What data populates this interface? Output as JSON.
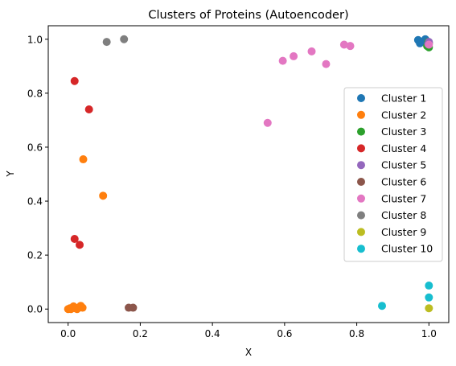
{
  "chart_data": {
    "type": "scatter",
    "title": "Clusters of Proteins (Autoencoder)",
    "xlabel": "X",
    "ylabel": "Y",
    "xlim": [
      -0.055,
      1.055
    ],
    "ylim": [
      -0.05,
      1.05
    ],
    "xticks": [
      0.0,
      0.2,
      0.4,
      0.6,
      0.8,
      1.0
    ],
    "xtick_labels": [
      "0.0",
      "0.2",
      "0.4",
      "0.6",
      "0.8",
      "1.0"
    ],
    "yticks": [
      0.0,
      0.2,
      0.4,
      0.6,
      0.8,
      1.0
    ],
    "ytick_labels": [
      "0.0",
      "0.2",
      "0.4",
      "0.6",
      "0.8",
      "1.0"
    ],
    "grid": false,
    "legend_position": "center-right",
    "series": [
      {
        "name": "Cluster 1",
        "color": "#1f77b4",
        "points": [
          [
            0.97,
            0.997
          ],
          [
            0.975,
            0.985
          ],
          [
            0.98,
            0.99
          ],
          [
            0.99,
            1.0
          ],
          [
            0.995,
            0.993
          ]
        ]
      },
      {
        "name": "Cluster 2",
        "color": "#ff7f0e",
        "points": [
          [
            0.0,
            0.0
          ],
          [
            0.005,
            0.003
          ],
          [
            0.008,
            0.0
          ],
          [
            0.012,
            0.005
          ],
          [
            0.015,
            0.01
          ],
          [
            0.02,
            0.003
          ],
          [
            0.025,
            0.0
          ],
          [
            0.03,
            0.006
          ],
          [
            0.035,
            0.012
          ],
          [
            0.04,
            0.005
          ],
          [
            0.042,
            0.555
          ],
          [
            0.097,
            0.42
          ]
        ]
      },
      {
        "name": "Cluster 3",
        "color": "#2ca02c",
        "points": [
          [
            0.995,
            0.975
          ],
          [
            1.0,
            0.97
          ],
          [
            1.0,
            0.985
          ],
          [
            0.998,
            0.99
          ]
        ]
      },
      {
        "name": "Cluster 4",
        "color": "#d62728",
        "points": [
          [
            0.018,
            0.845
          ],
          [
            0.058,
            0.74
          ],
          [
            0.018,
            0.26
          ],
          [
            0.032,
            0.238
          ]
        ]
      },
      {
        "name": "Cluster 5",
        "color": "#9467bd",
        "points": [
          [
            1.0,
            0.99
          ],
          [
            0.998,
            0.982
          ]
        ]
      },
      {
        "name": "Cluster 6",
        "color": "#8c564b",
        "points": [
          [
            0.168,
            0.005
          ],
          [
            0.18,
            0.005
          ]
        ]
      },
      {
        "name": "Cluster 7",
        "color": "#e377c2",
        "points": [
          [
            0.553,
            0.69
          ],
          [
            0.595,
            0.92
          ],
          [
            0.625,
            0.937
          ],
          [
            0.675,
            0.955
          ],
          [
            0.715,
            0.908
          ],
          [
            0.765,
            0.98
          ],
          [
            0.782,
            0.975
          ],
          [
            1.0,
            0.98
          ]
        ]
      },
      {
        "name": "Cluster 8",
        "color": "#7f7f7f",
        "points": [
          [
            0.107,
            0.99
          ],
          [
            0.155,
            1.0
          ]
        ]
      },
      {
        "name": "Cluster 9",
        "color": "#bcbd22",
        "points": [
          [
            1.0,
            0.003
          ]
        ]
      },
      {
        "name": "Cluster 10",
        "color": "#17becf",
        "points": [
          [
            0.87,
            0.012
          ],
          [
            1.0,
            0.087
          ],
          [
            1.0,
            0.043
          ]
        ]
      }
    ]
  }
}
